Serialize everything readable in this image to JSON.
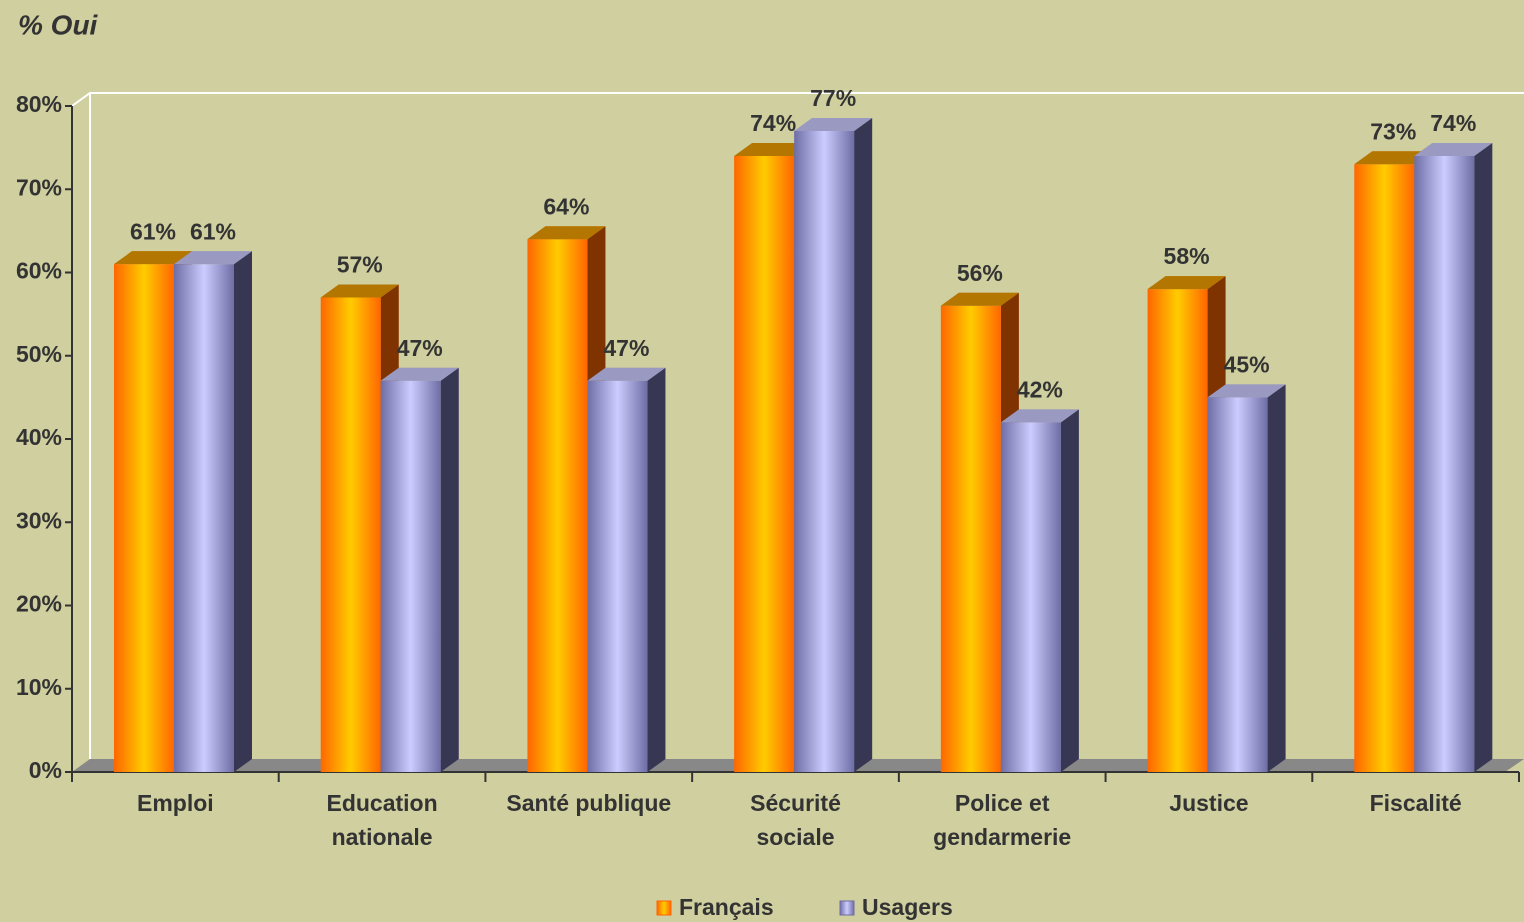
{
  "chart_data": {
    "type": "bar3d",
    "title": "% Oui",
    "categories": [
      "Emploi",
      "Education\nnationale",
      "Santé publique",
      "Sécurité\nsociale",
      "Police et\ngendarmerie",
      "Justice",
      "Fiscalité"
    ],
    "series": [
      {
        "name": "Français",
        "color": "#ff6600",
        "values": [
          61,
          57,
          64,
          74,
          56,
          58,
          73
        ],
        "value_labels": [
          "61%",
          "57%",
          "64%",
          "74%",
          "56%",
          "58%",
          "73%"
        ]
      },
      {
        "name": "Usagers",
        "color": "#6e6ea6",
        "values": [
          61,
          47,
          47,
          77,
          42,
          45,
          74
        ],
        "value_labels": [
          "61%",
          "47%",
          "47%",
          "77%",
          "42%",
          "45%",
          "74%"
        ]
      }
    ],
    "ylim": [
      0,
      80
    ],
    "yticks": [
      {
        "value": 0,
        "label": "0%"
      },
      {
        "value": 10,
        "label": "10%"
      },
      {
        "value": 20,
        "label": "20%"
      },
      {
        "value": 30,
        "label": "30%"
      },
      {
        "value": 40,
        "label": "40%"
      },
      {
        "value": 50,
        "label": "50%"
      },
      {
        "value": 60,
        "label": "60%"
      },
      {
        "value": 70,
        "label": "70%"
      },
      {
        "value": 80,
        "label": "80%"
      }
    ],
    "legend": "bottom"
  }
}
